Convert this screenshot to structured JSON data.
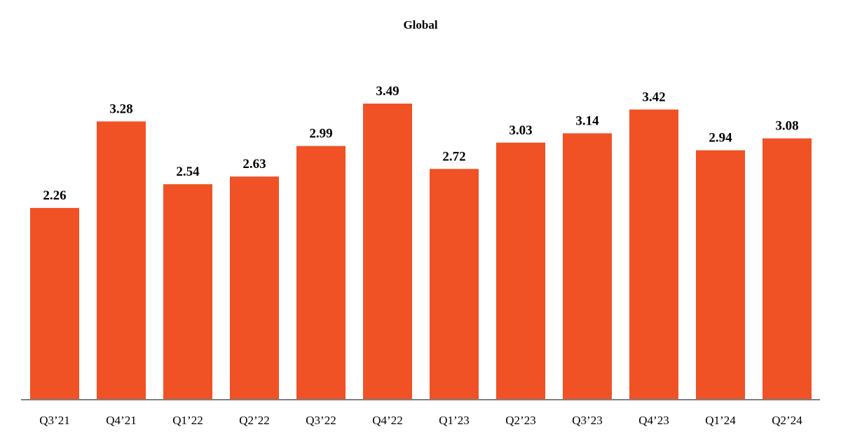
{
  "chart_data": {
    "type": "bar",
    "title": "Global",
    "xlabel": "",
    "ylabel": "",
    "categories": [
      "Q3’21",
      "Q4’21",
      "Q1’22",
      "Q2’22",
      "Q3’22",
      "Q4’22",
      "Q1’23",
      "Q2’23",
      "Q3’23",
      "Q4’23",
      "Q1’24",
      "Q2’24"
    ],
    "values": [
      2.26,
      3.28,
      2.54,
      2.63,
      2.99,
      3.49,
      2.72,
      3.03,
      3.14,
      3.42,
      2.94,
      3.08
    ],
    "value_labels": [
      "2.26",
      "3.28",
      "2.54",
      "2.63",
      "2.99",
      "3.49",
      "2.72",
      "3.03",
      "3.14",
      "3.42",
      "2.94",
      "3.08"
    ],
    "ylim": [
      0,
      4.2
    ],
    "grid": false,
    "legend": "none",
    "colors": {
      "bar": "#F05125",
      "axis": "#7f7f7f",
      "text": "#000000"
    }
  }
}
